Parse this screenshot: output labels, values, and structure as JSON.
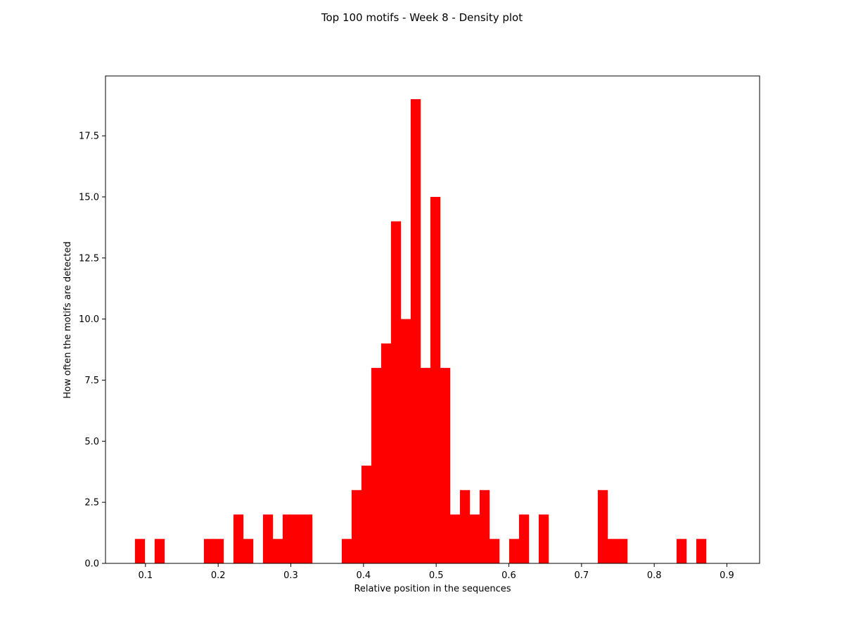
{
  "chart_data": {
    "type": "bar",
    "title": "Top 100 motifs - Week 8 - Density plot",
    "xlabel": "Relative position in the sequences",
    "ylabel": "How often the motifs are detected",
    "xlim": [
      0.045,
      0.945
    ],
    "ylim": [
      0,
      19.95
    ],
    "xticks": [
      0.1,
      0.2,
      0.3,
      0.4,
      0.5,
      0.6,
      0.7,
      0.8,
      0.9
    ],
    "yticks": [
      0.0,
      2.5,
      5.0,
      7.5,
      10.0,
      12.5,
      15.0,
      17.5
    ],
    "xtick_labels": [
      "0.1",
      "0.2",
      "0.3",
      "0.4",
      "0.5",
      "0.6",
      "0.7",
      "0.8",
      "0.9"
    ],
    "ytick_labels": [
      "0.0",
      "2.5",
      "5.0",
      "7.5",
      "10.0",
      "12.5",
      "15.0",
      "17.5"
    ],
    "bin_start": 0.0855,
    "bin_width": 0.01355,
    "values": [
      1,
      0,
      1,
      0,
      0,
      0,
      0,
      1,
      1,
      0,
      2,
      1,
      0,
      2,
      1,
      2,
      2,
      2,
      0,
      0,
      0,
      1,
      3,
      4,
      8,
      9,
      14,
      10,
      19,
      8,
      15,
      8,
      2,
      3,
      2,
      3,
      1,
      0,
      1,
      2,
      0,
      2,
      0,
      0,
      0,
      0,
      0,
      3,
      1,
      1,
      0,
      0,
      0,
      0,
      0,
      1,
      0,
      1
    ],
    "bar_color": "#ff0000",
    "grid": false,
    "legend": false
  }
}
